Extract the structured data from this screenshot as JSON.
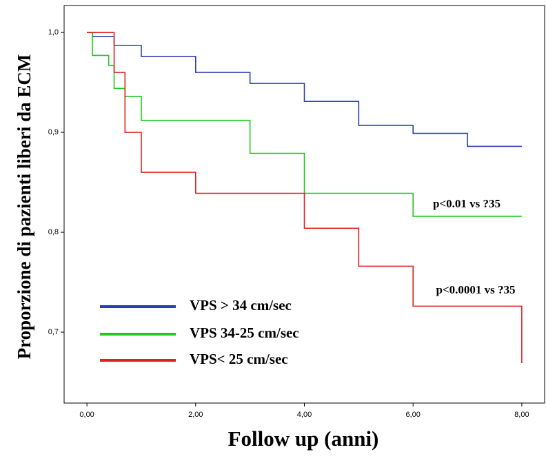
{
  "chart_data": {
    "type": "line",
    "step": "post",
    "ylabel": "Proporzione di pazienti liberi da ECM",
    "xlabel": "Follow up (anni)",
    "xlim": [
      -0.42,
      8.42
    ],
    "ylim": [
      0.629,
      1.027
    ],
    "xticks": [
      {
        "value": 0,
        "label": "0,00"
      },
      {
        "value": 2,
        "label": "2,00"
      },
      {
        "value": 4,
        "label": "4,00"
      },
      {
        "value": 6,
        "label": "6,00"
      },
      {
        "value": 8,
        "label": "8,00"
      }
    ],
    "yticks": [
      {
        "value": 0.7,
        "label": "0,7"
      },
      {
        "value": 0.8,
        "label": "0,8"
      },
      {
        "value": 0.9,
        "label": "0,9"
      },
      {
        "value": 1.0,
        "label": "1,0"
      }
    ],
    "series": [
      {
        "name": "VPS > 34 cm/sec",
        "color": "#2b3fb0",
        "x": [
          0,
          0.1,
          0.5,
          1,
          2,
          3,
          4,
          5,
          6,
          7,
          8
        ],
        "values": [
          1.0,
          0.996,
          0.987,
          0.976,
          0.96,
          0.949,
          0.931,
          0.907,
          0.899,
          0.886,
          0.886
        ]
      },
      {
        "name": "VPS 34-25 cm/sec",
        "color": "#1ec81e",
        "x": [
          0,
          0.1,
          0.4,
          0.5,
          0.7,
          1,
          3,
          4,
          6,
          8
        ],
        "values": [
          1.0,
          0.977,
          0.967,
          0.944,
          0.936,
          0.912,
          0.879,
          0.839,
          0.816,
          0.816
        ]
      },
      {
        "name": "VPS< 25 cm/sec",
        "color": "#e02020",
        "x": [
          0,
          0.5,
          0.7,
          1,
          2,
          4,
          5,
          6,
          8
        ],
        "values": [
          1.0,
          0.96,
          0.9,
          0.86,
          0.839,
          0.804,
          0.766,
          0.726,
          0.669
        ]
      }
    ],
    "annotations": [
      "p<0.01 vs ?35",
      "p<0.0001 vs ?35"
    ]
  }
}
